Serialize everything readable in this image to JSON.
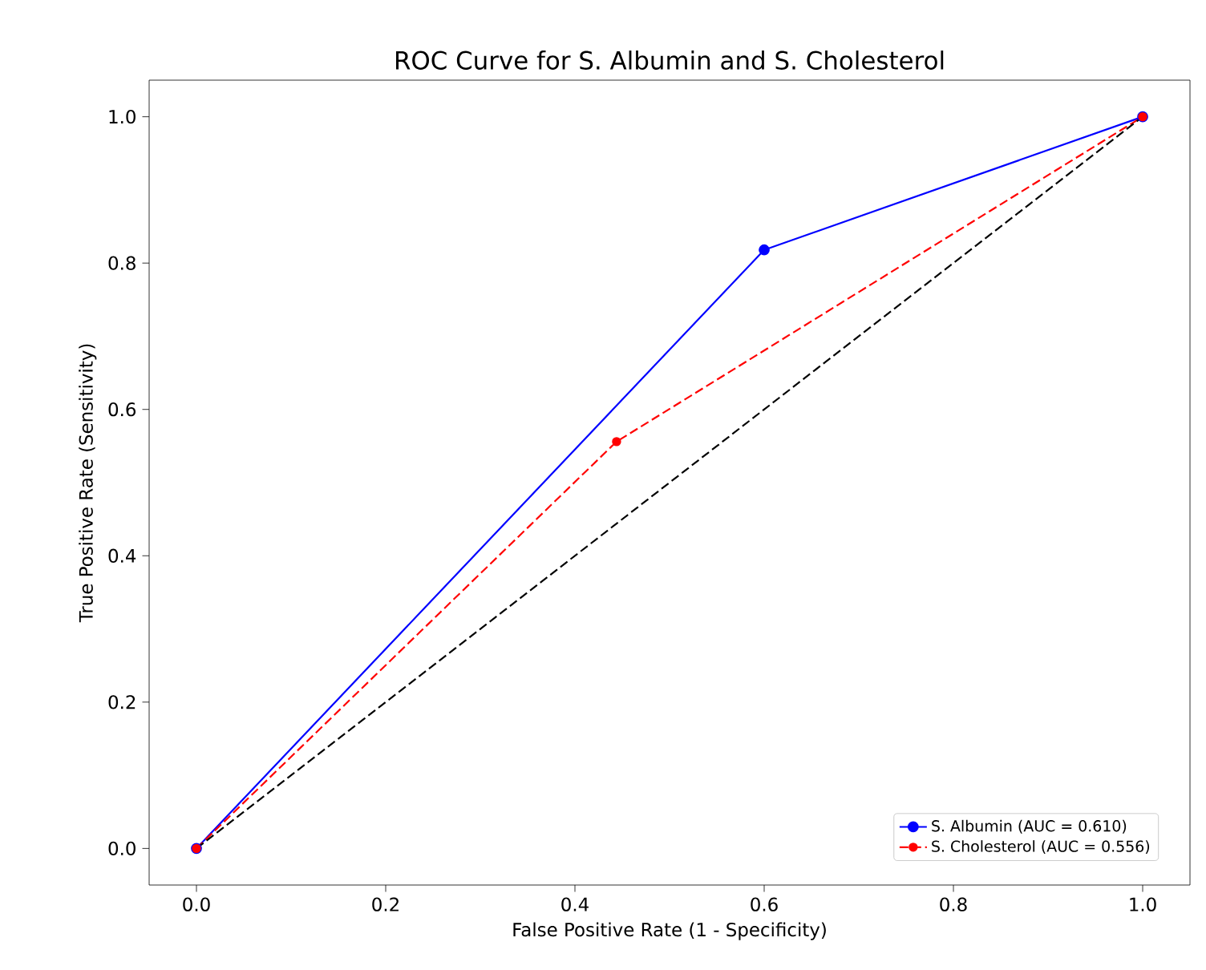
{
  "chart_data": {
    "type": "line",
    "title": "ROC Curve for S. Albumin and S. Cholesterol",
    "xlabel": "False Positive Rate (1 - Specificity)",
    "ylabel": "True Positive Rate (Sensitivity)",
    "series": [
      {
        "name": "S. Albumin (AUC = 0.610)",
        "color": "#0000ff",
        "x": [
          0,
          0.6,
          1
        ],
        "values": [
          0,
          0.818,
          1
        ],
        "marker": "circle",
        "line_style": "solid"
      },
      {
        "name": "S. Cholesterol (AUC = 0.556)",
        "color": "#ff0000",
        "x": [
          0,
          0.444,
          1
        ],
        "values": [
          0,
          0.556,
          1
        ],
        "marker": "circle",
        "line_style": "dashed"
      },
      {
        "color": "#000000",
        "x": [
          0,
          1
        ],
        "values": [
          0,
          1
        ],
        "marker": "none",
        "line_style": "dashed"
      }
    ],
    "xlim": [
      -0.05,
      1.05
    ],
    "ylim": [
      -0.05,
      1.05
    ],
    "xticks": [
      {
        "value": 0,
        "label": "0.0"
      },
      {
        "value": 0.2,
        "label": "0.2"
      },
      {
        "value": 0.4,
        "label": "0.4"
      },
      {
        "value": 0.6,
        "label": "0.6"
      },
      {
        "value": 0.8,
        "label": "0.8"
      },
      {
        "value": 1,
        "label": "1.0"
      }
    ],
    "yticks": [
      {
        "value": 0,
        "label": "0.0"
      },
      {
        "value": 0.2,
        "label": "0.2"
      },
      {
        "value": 0.4,
        "label": "0.4"
      },
      {
        "value": 0.6,
        "label": "0.6"
      },
      {
        "value": 0.8,
        "label": "0.8"
      },
      {
        "value": 1,
        "label": "1.0"
      }
    ],
    "grid": false,
    "legend": "bottom right"
  }
}
